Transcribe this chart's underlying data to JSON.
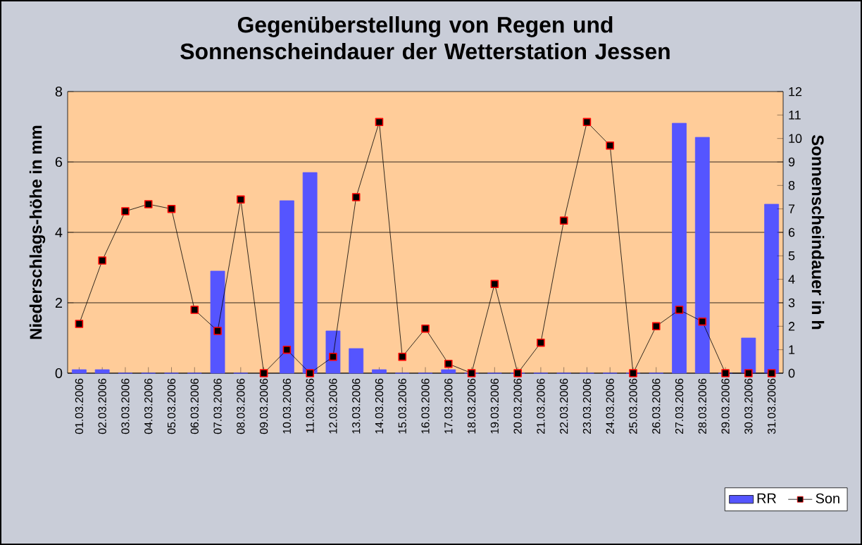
{
  "chart_data": {
    "type": "bar",
    "title": "Gegenüberstellung von Regen und Sonnenscheindauer der Wetterstation Jessen",
    "ylabel": "Niederschlags-höhe in mm",
    "y2label": "Sonnenscheindauer in h",
    "categories": [
      "01.03.2006",
      "02.03.2006",
      "03.03.2006",
      "04.03.2006",
      "05.03.2006",
      "06.03.2006",
      "07.03.2006",
      "08.03.2006",
      "09.03.2006",
      "10.03.2006",
      "11.03.2006",
      "12.03.2006",
      "13.03.2006",
      "14.03.2006",
      "15.03.2006",
      "16.03.2006",
      "17.03.2006",
      "18.03.2006",
      "19.03.2006",
      "20.03.2006",
      "21.03.2006",
      "22.03.2006",
      "23.03.2006",
      "24.03.2006",
      "25.03.2006",
      "26.03.2006",
      "27.03.2006",
      "28.03.2006",
      "29.03.2006",
      "30.03.2006",
      "31.03.2006"
    ],
    "series": [
      {
        "name": "RR",
        "color": "#5555ff",
        "values": [
          0.1,
          0.1,
          0,
          0,
          0,
          0,
          2.9,
          0,
          null,
          4.9,
          5.7,
          1.2,
          0.7,
          0.1,
          0,
          0,
          0.1,
          0,
          0,
          0,
          0,
          0,
          0,
          0,
          0,
          0,
          7.1,
          6.7,
          0,
          1.0,
          4.8
        ]
      },
      {
        "name": "Son",
        "type": "line",
        "axis": "y2",
        "color": "#000000",
        "values": [
          2.1,
          4.8,
          6.9,
          7.2,
          7.0,
          2.7,
          1.8,
          7.4,
          0,
          1.0,
          0,
          0.7,
          7.5,
          10.7,
          0.7,
          1.9,
          0.4,
          0,
          3.8,
          0,
          1.3,
          6.5,
          10.7,
          9.7,
          0,
          2.0,
          2.7,
          2.2,
          0,
          0,
          0
        ]
      }
    ],
    "ylim": [
      0,
      8
    ],
    "yticks": [
      0,
      2,
      4,
      6,
      8
    ],
    "y2lim": [
      0,
      12
    ],
    "y2ticks": [
      0,
      1,
      2,
      3,
      4,
      5,
      6,
      7,
      8,
      9,
      10,
      11,
      12
    ],
    "grid": "y",
    "legend": "bottom right",
    "marker": "square"
  }
}
